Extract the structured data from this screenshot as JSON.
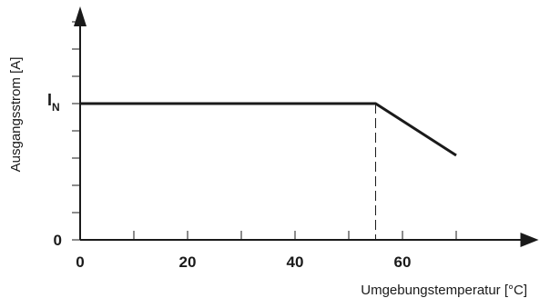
{
  "chart_data": {
    "type": "line",
    "title": "",
    "xlabel": "Umgebungstemperatur [°C]",
    "ylabel": "Ausgangsstrom [A]",
    "xlim": [
      0,
      85
    ],
    "ylim": [
      0,
      1.7
    ],
    "x_ticks": [
      0,
      10,
      20,
      30,
      40,
      50,
      60,
      70
    ],
    "x_tick_labels": [
      {
        "value": 0,
        "label": "0"
      },
      {
        "value": 20,
        "label": "20"
      },
      {
        "value": 40,
        "label": "40"
      },
      {
        "value": 60,
        "label": "60"
      }
    ],
    "y_ticks": [
      0,
      0.2,
      0.4,
      0.6,
      0.8,
      1.0,
      1.2,
      1.4,
      1.6
    ],
    "y_tick_labels": [
      {
        "value": 0,
        "label": "0"
      },
      {
        "value": 1.0,
        "label": "I",
        "subscript": "N"
      }
    ],
    "series": [
      {
        "x": [
          0,
          55,
          70
        ],
        "y": [
          1.0,
          1.0,
          0.62
        ],
        "color": "#1a1a1a"
      }
    ],
    "reference_lines": [
      {
        "orientation": "vertical",
        "x": 55,
        "y_from": 0,
        "y_to": 1.0,
        "style": "dashed"
      }
    ],
    "grid": false,
    "legend": "none"
  }
}
